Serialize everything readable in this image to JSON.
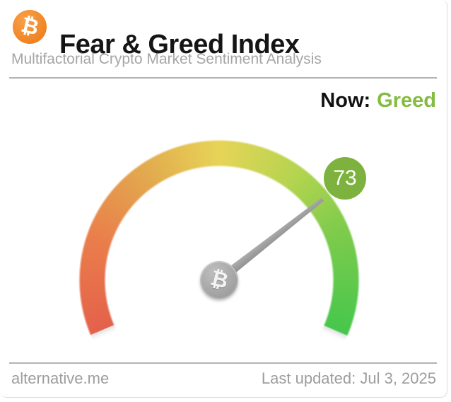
{
  "header": {
    "title": "Fear & Greed Index",
    "subtitle": "Multifactorial Crypto Market Sentiment Analysis",
    "brand_glyph": "₿",
    "brand_color": "#ef8221"
  },
  "now": {
    "label": "Now:",
    "value": "Greed",
    "value_color": "#84bb41"
  },
  "chart_data": {
    "type": "gauge",
    "title": "Fear & Greed Index",
    "value": 73,
    "min": 0,
    "max": 100,
    "classification": "Greed",
    "start_deg": 203,
    "sweep_deg": 226,
    "badge_color": "#7db23f",
    "needle_color": "#9a9a9a",
    "center_glyph": "₿",
    "color_stops": [
      {
        "pos": 0,
        "color": "#e4614b"
      },
      {
        "pos": 18,
        "color": "#ea7d4b"
      },
      {
        "pos": 35,
        "color": "#e2aa4e"
      },
      {
        "pos": 50,
        "color": "#e7d457"
      },
      {
        "pos": 66,
        "color": "#b4d44f"
      },
      {
        "pos": 80,
        "color": "#7ecb4c"
      },
      {
        "pos": 100,
        "color": "#46c74c"
      }
    ]
  },
  "footer": {
    "site": "alternative.me",
    "last_updated": "Last updated: Jul 3, 2025"
  }
}
